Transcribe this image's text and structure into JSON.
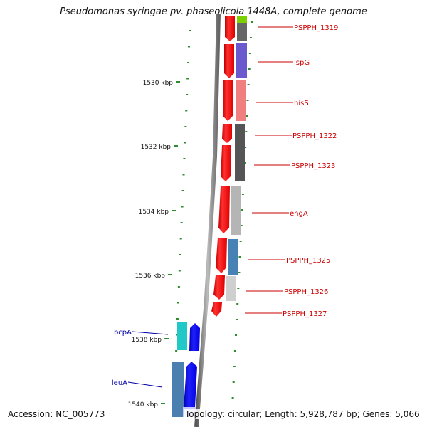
{
  "title": "Pseudomonas syringae pv. phaseolicola 1448A, complete genome",
  "accession": "Accession: NC_005773",
  "genome_summary": "Topology: circular; Length: 5,928,787 bp; Genes: 5,066",
  "scale_labels": [
    "1530 kbp",
    "1532 kbp",
    "1534 kbp",
    "1536 kbp",
    "1538 kbp",
    "1540 kbp"
  ],
  "gene_labels_right": [
    "PSPPH_1319",
    "ispG",
    "hisS",
    "PSPPH_1322",
    "PSPPH_1323",
    "engA",
    "PSPPH_1325",
    "PSPPH_1326",
    "PSPPH_1327"
  ],
  "gene_labels_left": [
    "bcpA",
    "leuA"
  ],
  "colors": {
    "right_label": "#cc0000",
    "left_label": "#0000aa",
    "tick": "#2e8b2e",
    "backbone": "#777777",
    "strand_red": "#ff1010",
    "strand_blue": "#0a0aff"
  }
}
